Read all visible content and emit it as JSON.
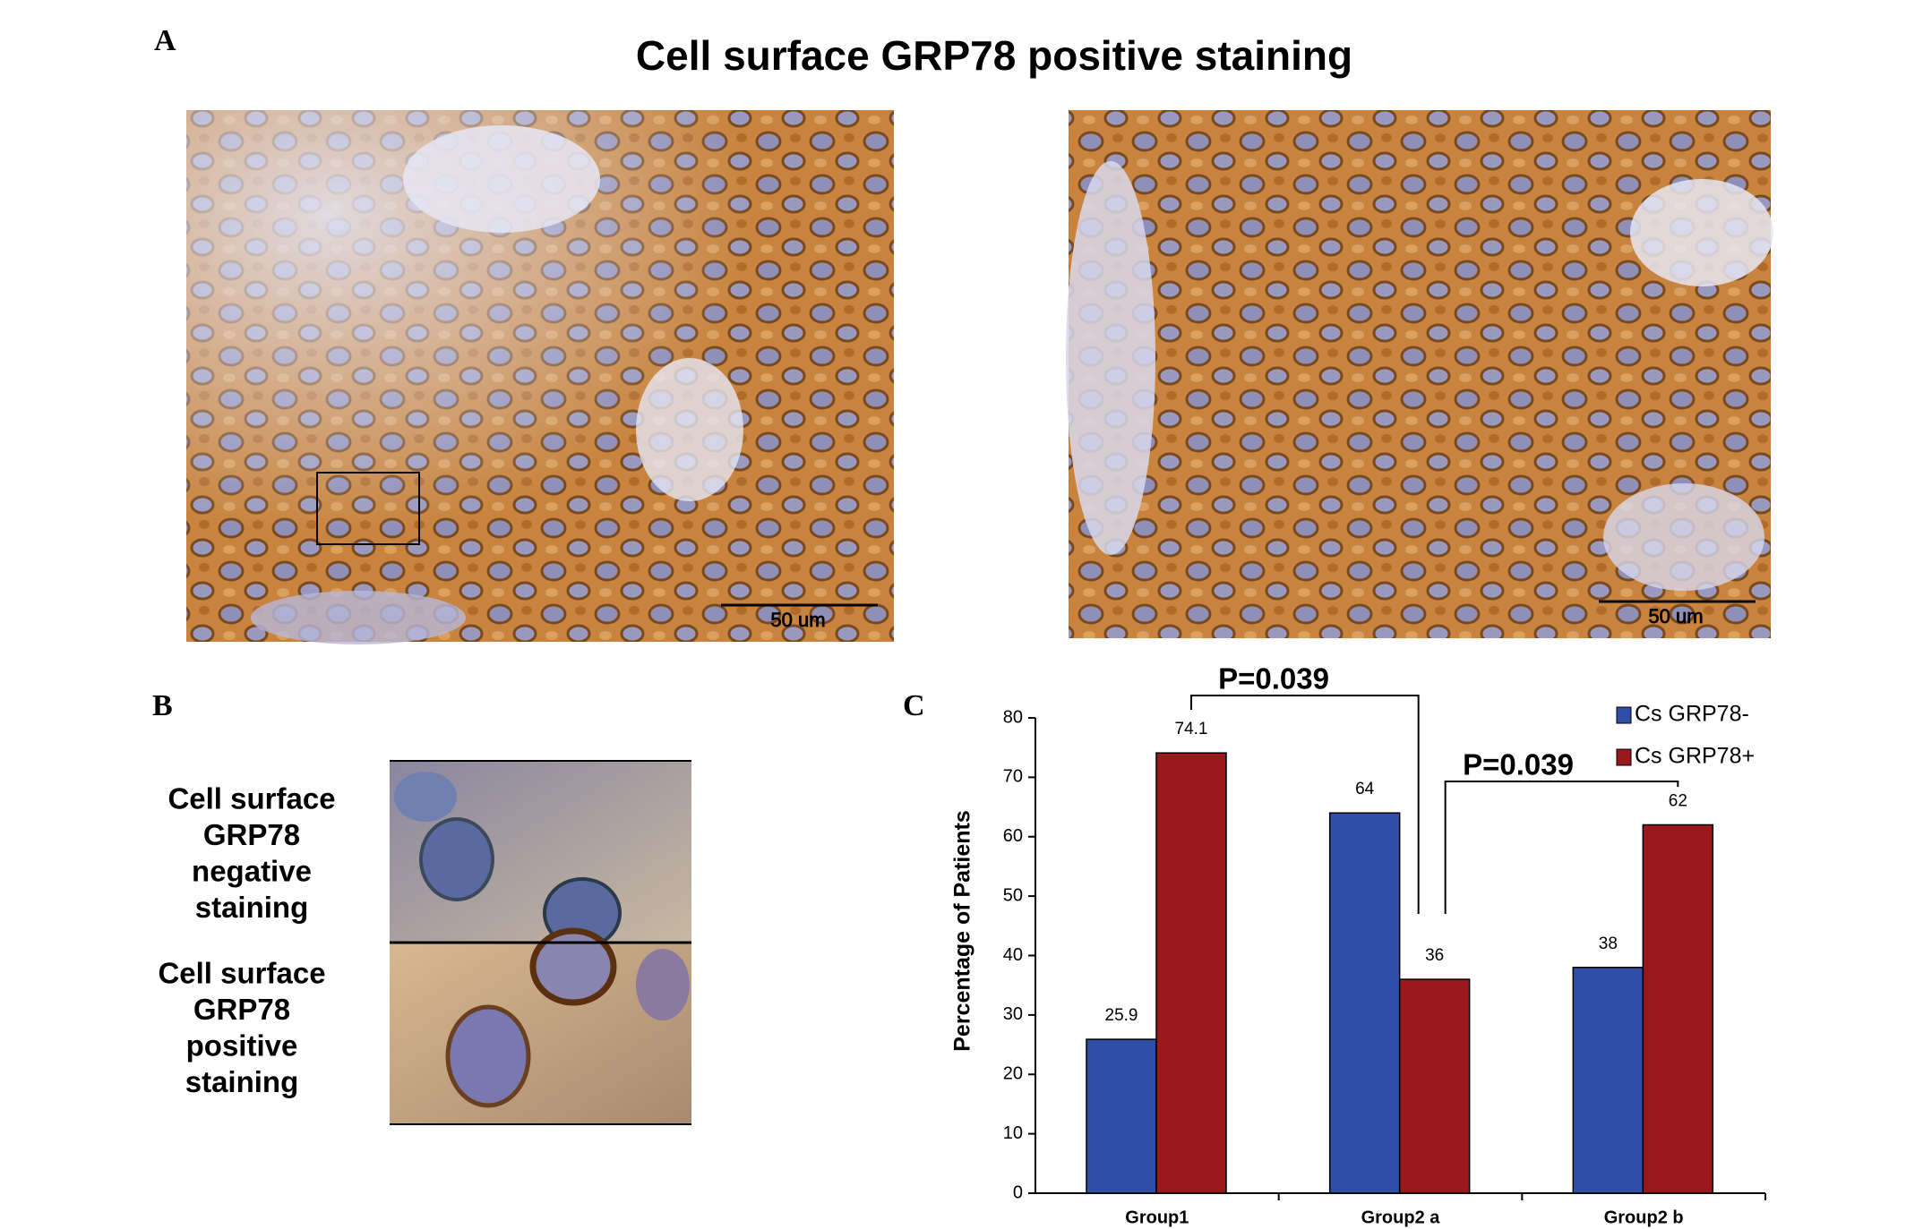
{
  "panel_a": {
    "label": "A",
    "title": "Cell surface GRP78 positive staining",
    "scale_bars": [
      "50 um",
      "50 um"
    ]
  },
  "panel_b": {
    "label": "B",
    "captions": [
      [
        "Cell surface",
        "GRP78",
        "negative",
        "staining"
      ],
      [
        "Cell surface",
        "GRP78",
        "positive",
        "staining"
      ]
    ]
  },
  "chart_data": {
    "type": "bar",
    "label": "C",
    "ylabel": "Percentage of Patients",
    "categories": [
      "Group1",
      "Group2 a",
      "Group2 b"
    ],
    "series": [
      {
        "name": "Cs GRP78-",
        "color": "#2f4ea8",
        "values": [
          25.9,
          64,
          38
        ]
      },
      {
        "name": "Cs GRP78+",
        "color": "#9a171c",
        "values": [
          74.1,
          36,
          62
        ]
      }
    ],
    "ylim": [
      0,
      80
    ],
    "yticks": [
      0,
      10,
      20,
      30,
      40,
      50,
      60,
      70,
      80
    ],
    "annotations": [
      "P=0.039",
      "P=0.039"
    ],
    "legend": "top-right"
  }
}
